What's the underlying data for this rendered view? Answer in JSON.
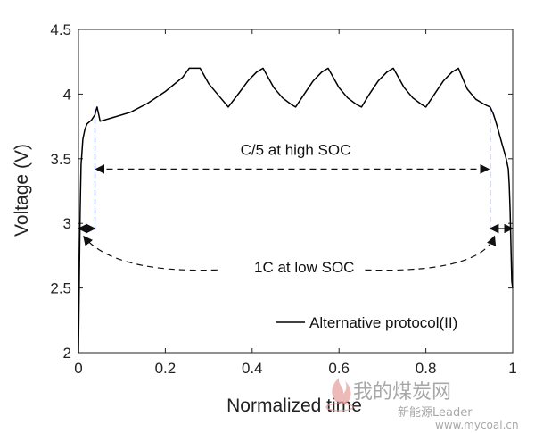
{
  "chart_data": {
    "type": "line",
    "xlabel": "Normalized time",
    "ylabel": "Voltage (V)",
    "xlim": [
      0,
      1
    ],
    "ylim": [
      2,
      4.5
    ],
    "xticks": [
      0,
      0.2,
      0.4,
      0.6,
      0.8,
      1
    ],
    "yticks": [
      2,
      2.5,
      3,
      3.5,
      4,
      4.5
    ],
    "xtick_labels": [
      "0",
      "0.2",
      "0.4",
      "0.6",
      "0.8",
      "1"
    ],
    "ytick_labels": [
      "2",
      "2.5",
      "3",
      "3.5",
      "4",
      "4.5"
    ],
    "grid": false,
    "legend_position": "bottom-right",
    "series": [
      {
        "name": "Alternative protocol(II)",
        "color": "#000000",
        "x": [
          0.0,
          0.002,
          0.004,
          0.006,
          0.01,
          0.015,
          0.02,
          0.03,
          0.038,
          0.04,
          0.043,
          0.05,
          0.08,
          0.12,
          0.16,
          0.2,
          0.24,
          0.255,
          0.28,
          0.3,
          0.33,
          0.345,
          0.37,
          0.39,
          0.41,
          0.425,
          0.45,
          0.47,
          0.49,
          0.5,
          0.52,
          0.54,
          0.56,
          0.575,
          0.6,
          0.62,
          0.64,
          0.652,
          0.67,
          0.69,
          0.71,
          0.725,
          0.75,
          0.77,
          0.79,
          0.8,
          0.82,
          0.84,
          0.86,
          0.875,
          0.895,
          0.915,
          0.935,
          0.948,
          0.955,
          0.96,
          0.965,
          0.97,
          0.975,
          0.98,
          0.985,
          0.99,
          0.992,
          0.994,
          0.996,
          0.998,
          1.0
        ],
        "y": [
          2.0,
          2.6,
          3.1,
          3.45,
          3.65,
          3.73,
          3.77,
          3.8,
          3.84,
          3.87,
          3.9,
          3.79,
          3.82,
          3.86,
          3.93,
          4.02,
          4.13,
          4.2,
          4.2,
          4.08,
          3.96,
          3.9,
          4.01,
          4.1,
          4.17,
          4.2,
          4.05,
          3.97,
          3.92,
          3.9,
          4.0,
          4.1,
          4.17,
          4.2,
          4.05,
          3.97,
          3.92,
          3.9,
          4.0,
          4.1,
          4.17,
          4.2,
          4.05,
          3.97,
          3.92,
          3.9,
          4.0,
          4.1,
          4.17,
          4.2,
          4.04,
          3.96,
          3.92,
          3.9,
          3.85,
          3.8,
          3.74,
          3.68,
          3.62,
          3.56,
          3.5,
          3.42,
          3.3,
          3.1,
          2.8,
          2.55,
          2.5
        ]
      }
    ],
    "annotations": [
      {
        "text": "C/5 at high SOC",
        "x": 0.5,
        "y": 3.53,
        "arrow_from": 0.04,
        "arrow_to": 0.945,
        "arrow_y": 3.42
      },
      {
        "text": "1C at low SOC",
        "x": 0.52,
        "y": 2.62
      }
    ],
    "markers": {
      "left_x": 0.038,
      "right_x": 0.948,
      "marker_y_top": 3.88,
      "marker_y_bottom": 2.95
    }
  },
  "watermark": {
    "line1": "我的煤炭网",
    "line2": "新能源Leader",
    "line3": "www.mycoal.cn"
  }
}
